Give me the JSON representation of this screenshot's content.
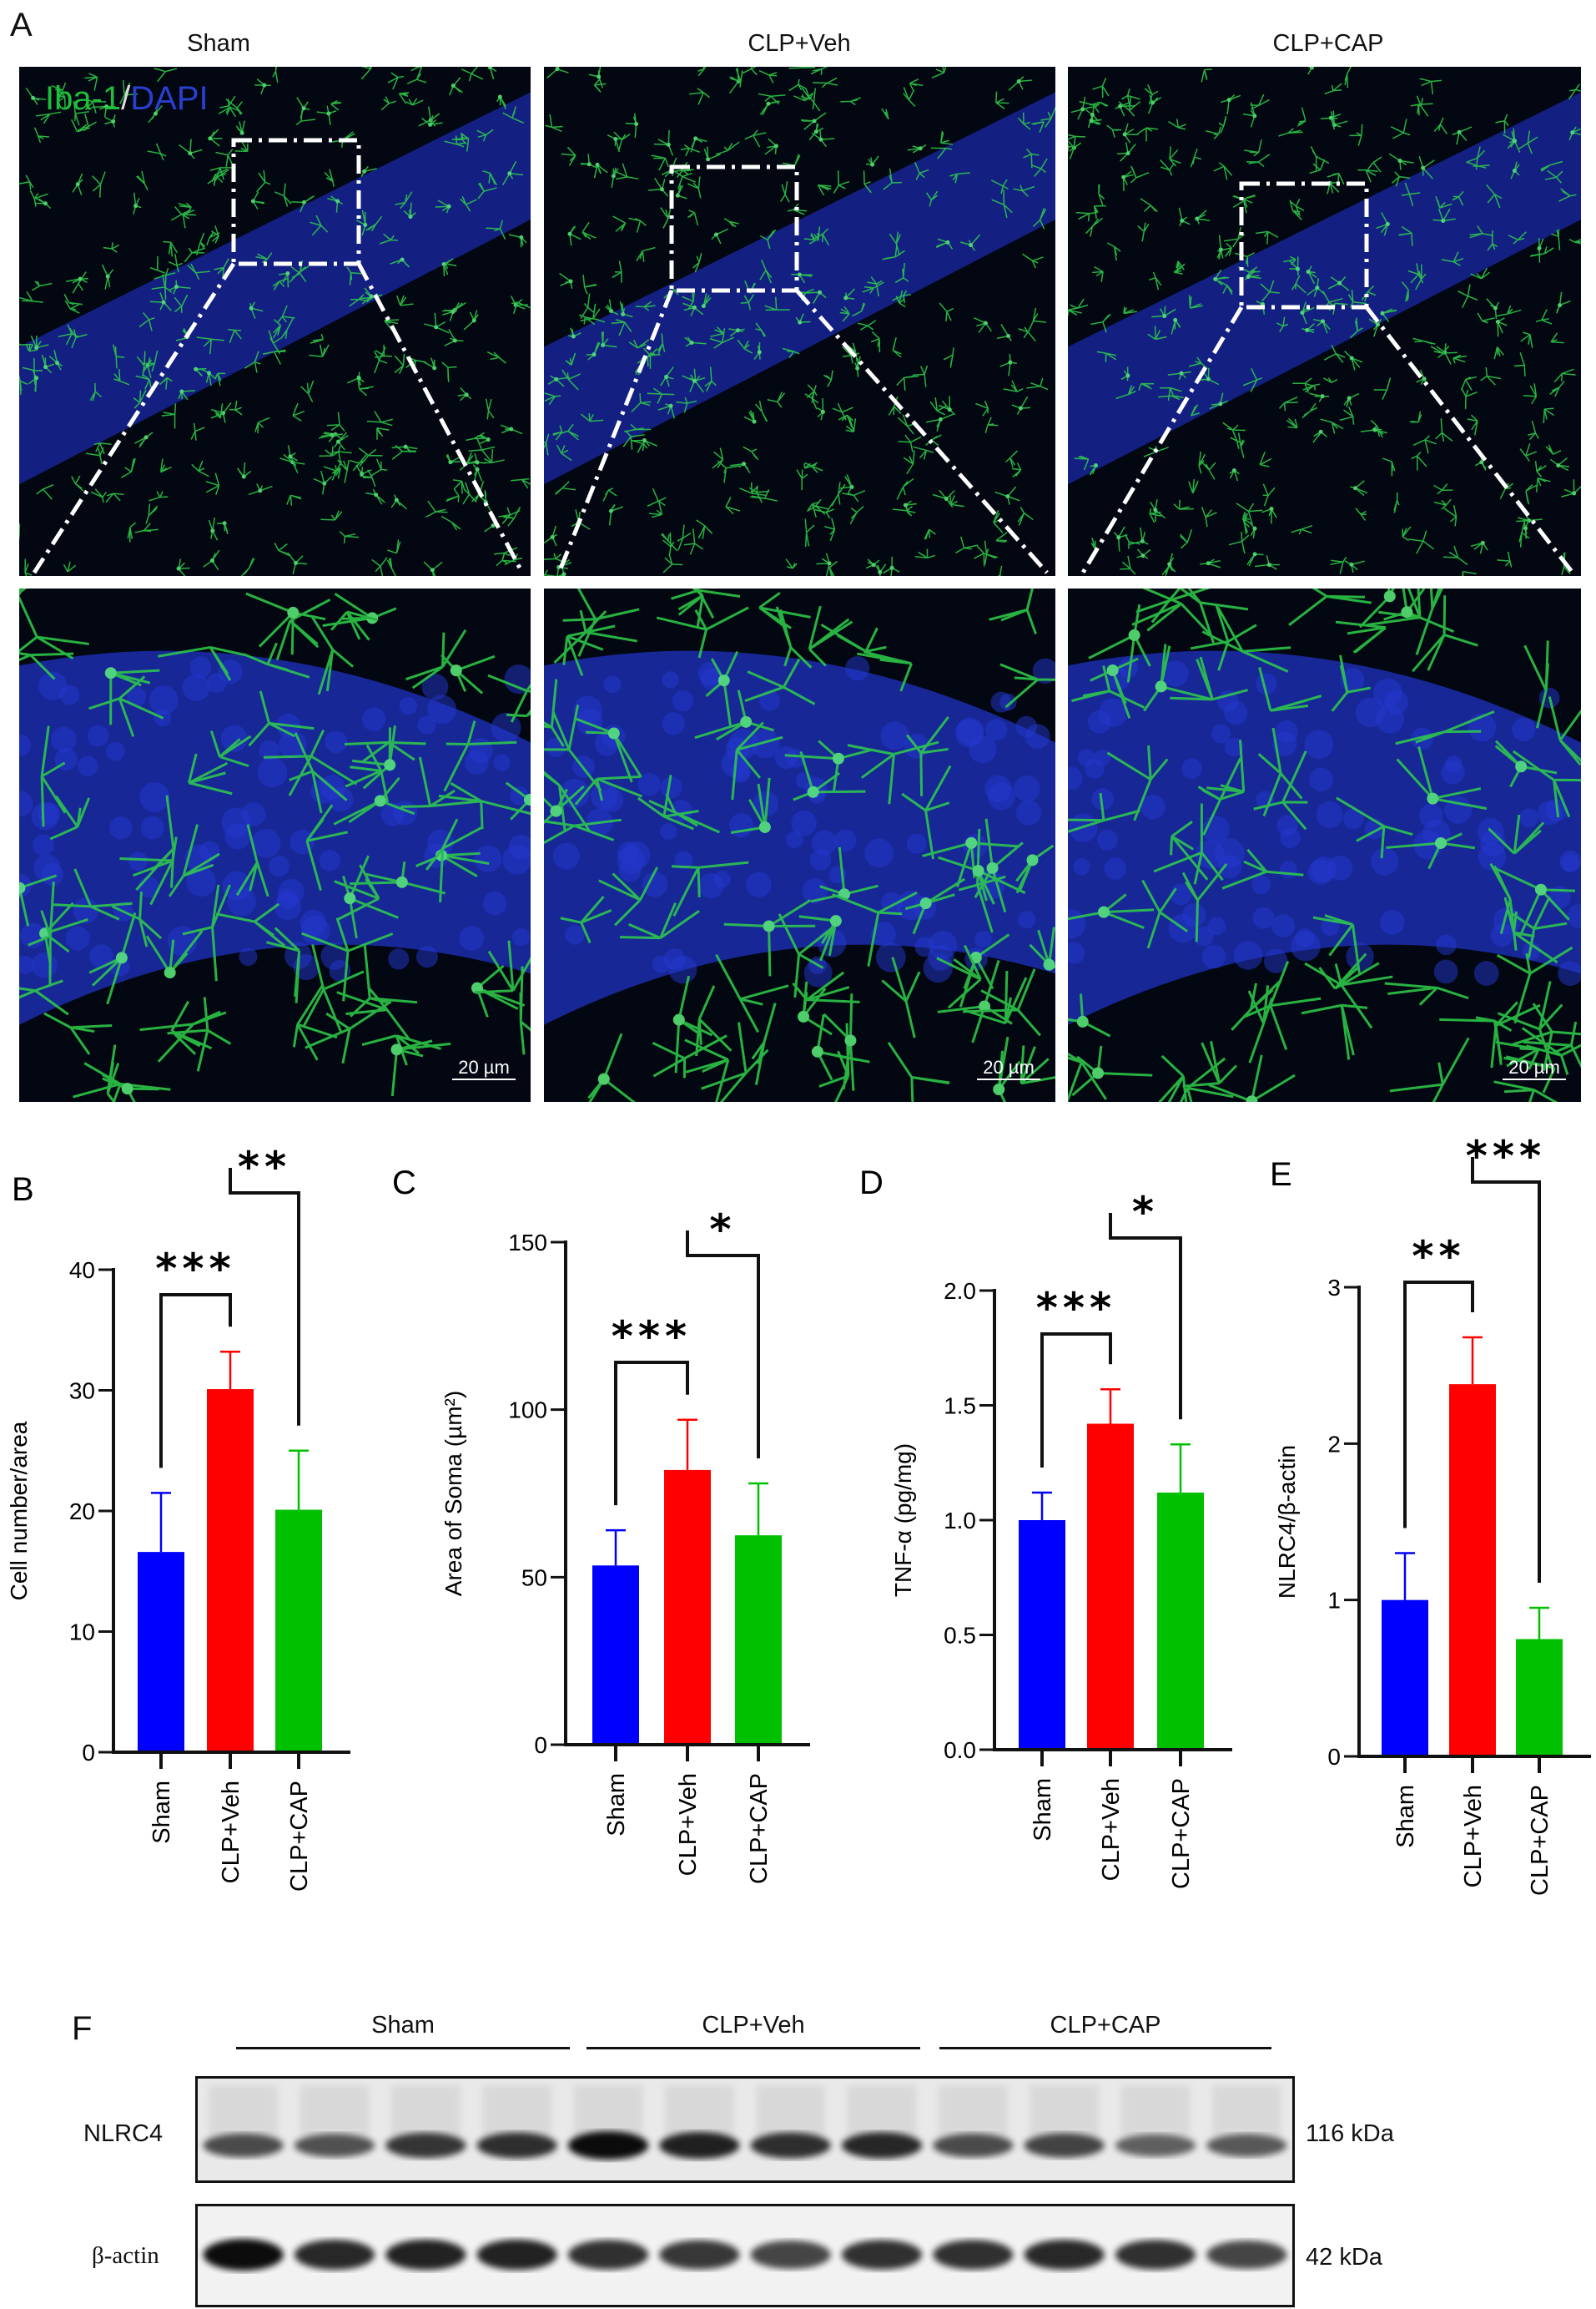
{
  "panel_a": {
    "label": "A",
    "columns": [
      "Sham",
      "CLP+Veh",
      "CLP+CAP"
    ],
    "stain_iba1": "Iba-1",
    "stain_sep": "/",
    "stain_dapi": "DAPI",
    "stain_colors": {
      "iba1": "#1fbf3a",
      "dapi": "#2a3fd0"
    },
    "scale_bar": "20 µm"
  },
  "chart_data": [
    {
      "panel": "B",
      "type": "bar",
      "categories": [
        "Sham",
        "CLP+Veh",
        "CLP+CAP"
      ],
      "values": [
        16.6,
        30.1,
        20.1
      ],
      "errors": [
        4.9,
        3.1,
        4.9
      ],
      "colors": [
        "#0000ff",
        "#ff0000",
        "#00c000"
      ],
      "ylabel": "Cell number/area",
      "ylim": [
        0,
        40
      ],
      "yticks": [
        "0",
        "10",
        "20",
        "30",
        "40"
      ],
      "ytick_values": [
        0,
        10,
        20,
        30,
        40
      ],
      "comparisons": [
        {
          "pair": [
            0,
            1
          ],
          "stars": "***"
        },
        {
          "pair": [
            1,
            2
          ],
          "stars": "**"
        }
      ]
    },
    {
      "panel": "C",
      "type": "bar",
      "categories": [
        "Sham",
        "CLP+Veh",
        "CLP+CAP"
      ],
      "values": [
        53.5,
        82,
        62.5
      ],
      "errors": [
        10.5,
        15,
        15.5
      ],
      "colors": [
        "#0000ff",
        "#ff0000",
        "#00c000"
      ],
      "ylabel": "Area of Soma (µm²)",
      "ylim": [
        0,
        150
      ],
      "yticks": [
        "0",
        "50",
        "100",
        "150"
      ],
      "ytick_values": [
        0,
        50,
        100,
        150
      ],
      "comparisons": [
        {
          "pair": [
            0,
            1
          ],
          "stars": "***"
        },
        {
          "pair": [
            1,
            2
          ],
          "stars": "*"
        }
      ]
    },
    {
      "panel": "D",
      "type": "bar",
      "categories": [
        "Sham",
        "CLP+Veh",
        "CLP+CAP"
      ],
      "values": [
        1.0,
        1.42,
        1.12
      ],
      "errors": [
        0.12,
        0.15,
        0.21
      ],
      "colors": [
        "#0000ff",
        "#ff0000",
        "#00c000"
      ],
      "ylabel": "TNF-α (pg/mg)",
      "ylim": [
        0,
        2.0
      ],
      "yticks": [
        "0.0",
        "0.5",
        "1.0",
        "1.5",
        "2.0"
      ],
      "ytick_values": [
        0,
        0.5,
        1.0,
        1.5,
        2.0
      ],
      "comparisons": [
        {
          "pair": [
            0,
            1
          ],
          "stars": "***"
        },
        {
          "pair": [
            1,
            2
          ],
          "stars": "*"
        }
      ]
    },
    {
      "panel": "E",
      "type": "bar",
      "categories": [
        "Sham",
        "CLP+Veh",
        "CLP+CAP"
      ],
      "values": [
        1.0,
        2.38,
        0.75
      ],
      "errors": [
        0.3,
        0.3,
        0.2
      ],
      "colors": [
        "#0000ff",
        "#ff0000",
        "#00c000"
      ],
      "ylabel": "NLRC4/β-actin",
      "ylim": [
        0,
        3
      ],
      "yticks": [
        "0",
        "1",
        "2",
        "3"
      ],
      "ytick_values": [
        0,
        1,
        2,
        3
      ],
      "comparisons": [
        {
          "pair": [
            0,
            1
          ],
          "stars": "**"
        },
        {
          "pair": [
            1,
            2
          ],
          "stars": "***"
        }
      ]
    }
  ],
  "panel_f": {
    "label": "F",
    "groups": [
      "Sham",
      "CLP+Veh",
      "CLP+CAP"
    ],
    "blots": [
      {
        "name": "NLRC4",
        "size": "116 kDa",
        "band_intensity": [
          0.55,
          0.5,
          0.7,
          0.75,
          1.0,
          0.85,
          0.75,
          0.8,
          0.55,
          0.6,
          0.4,
          0.45
        ]
      },
      {
        "name": "β-actin",
        "size": "42 kDa",
        "band_intensity": [
          1.0,
          0.8,
          0.85,
          0.85,
          0.75,
          0.7,
          0.6,
          0.75,
          0.75,
          0.8,
          0.75,
          0.6
        ]
      }
    ]
  }
}
